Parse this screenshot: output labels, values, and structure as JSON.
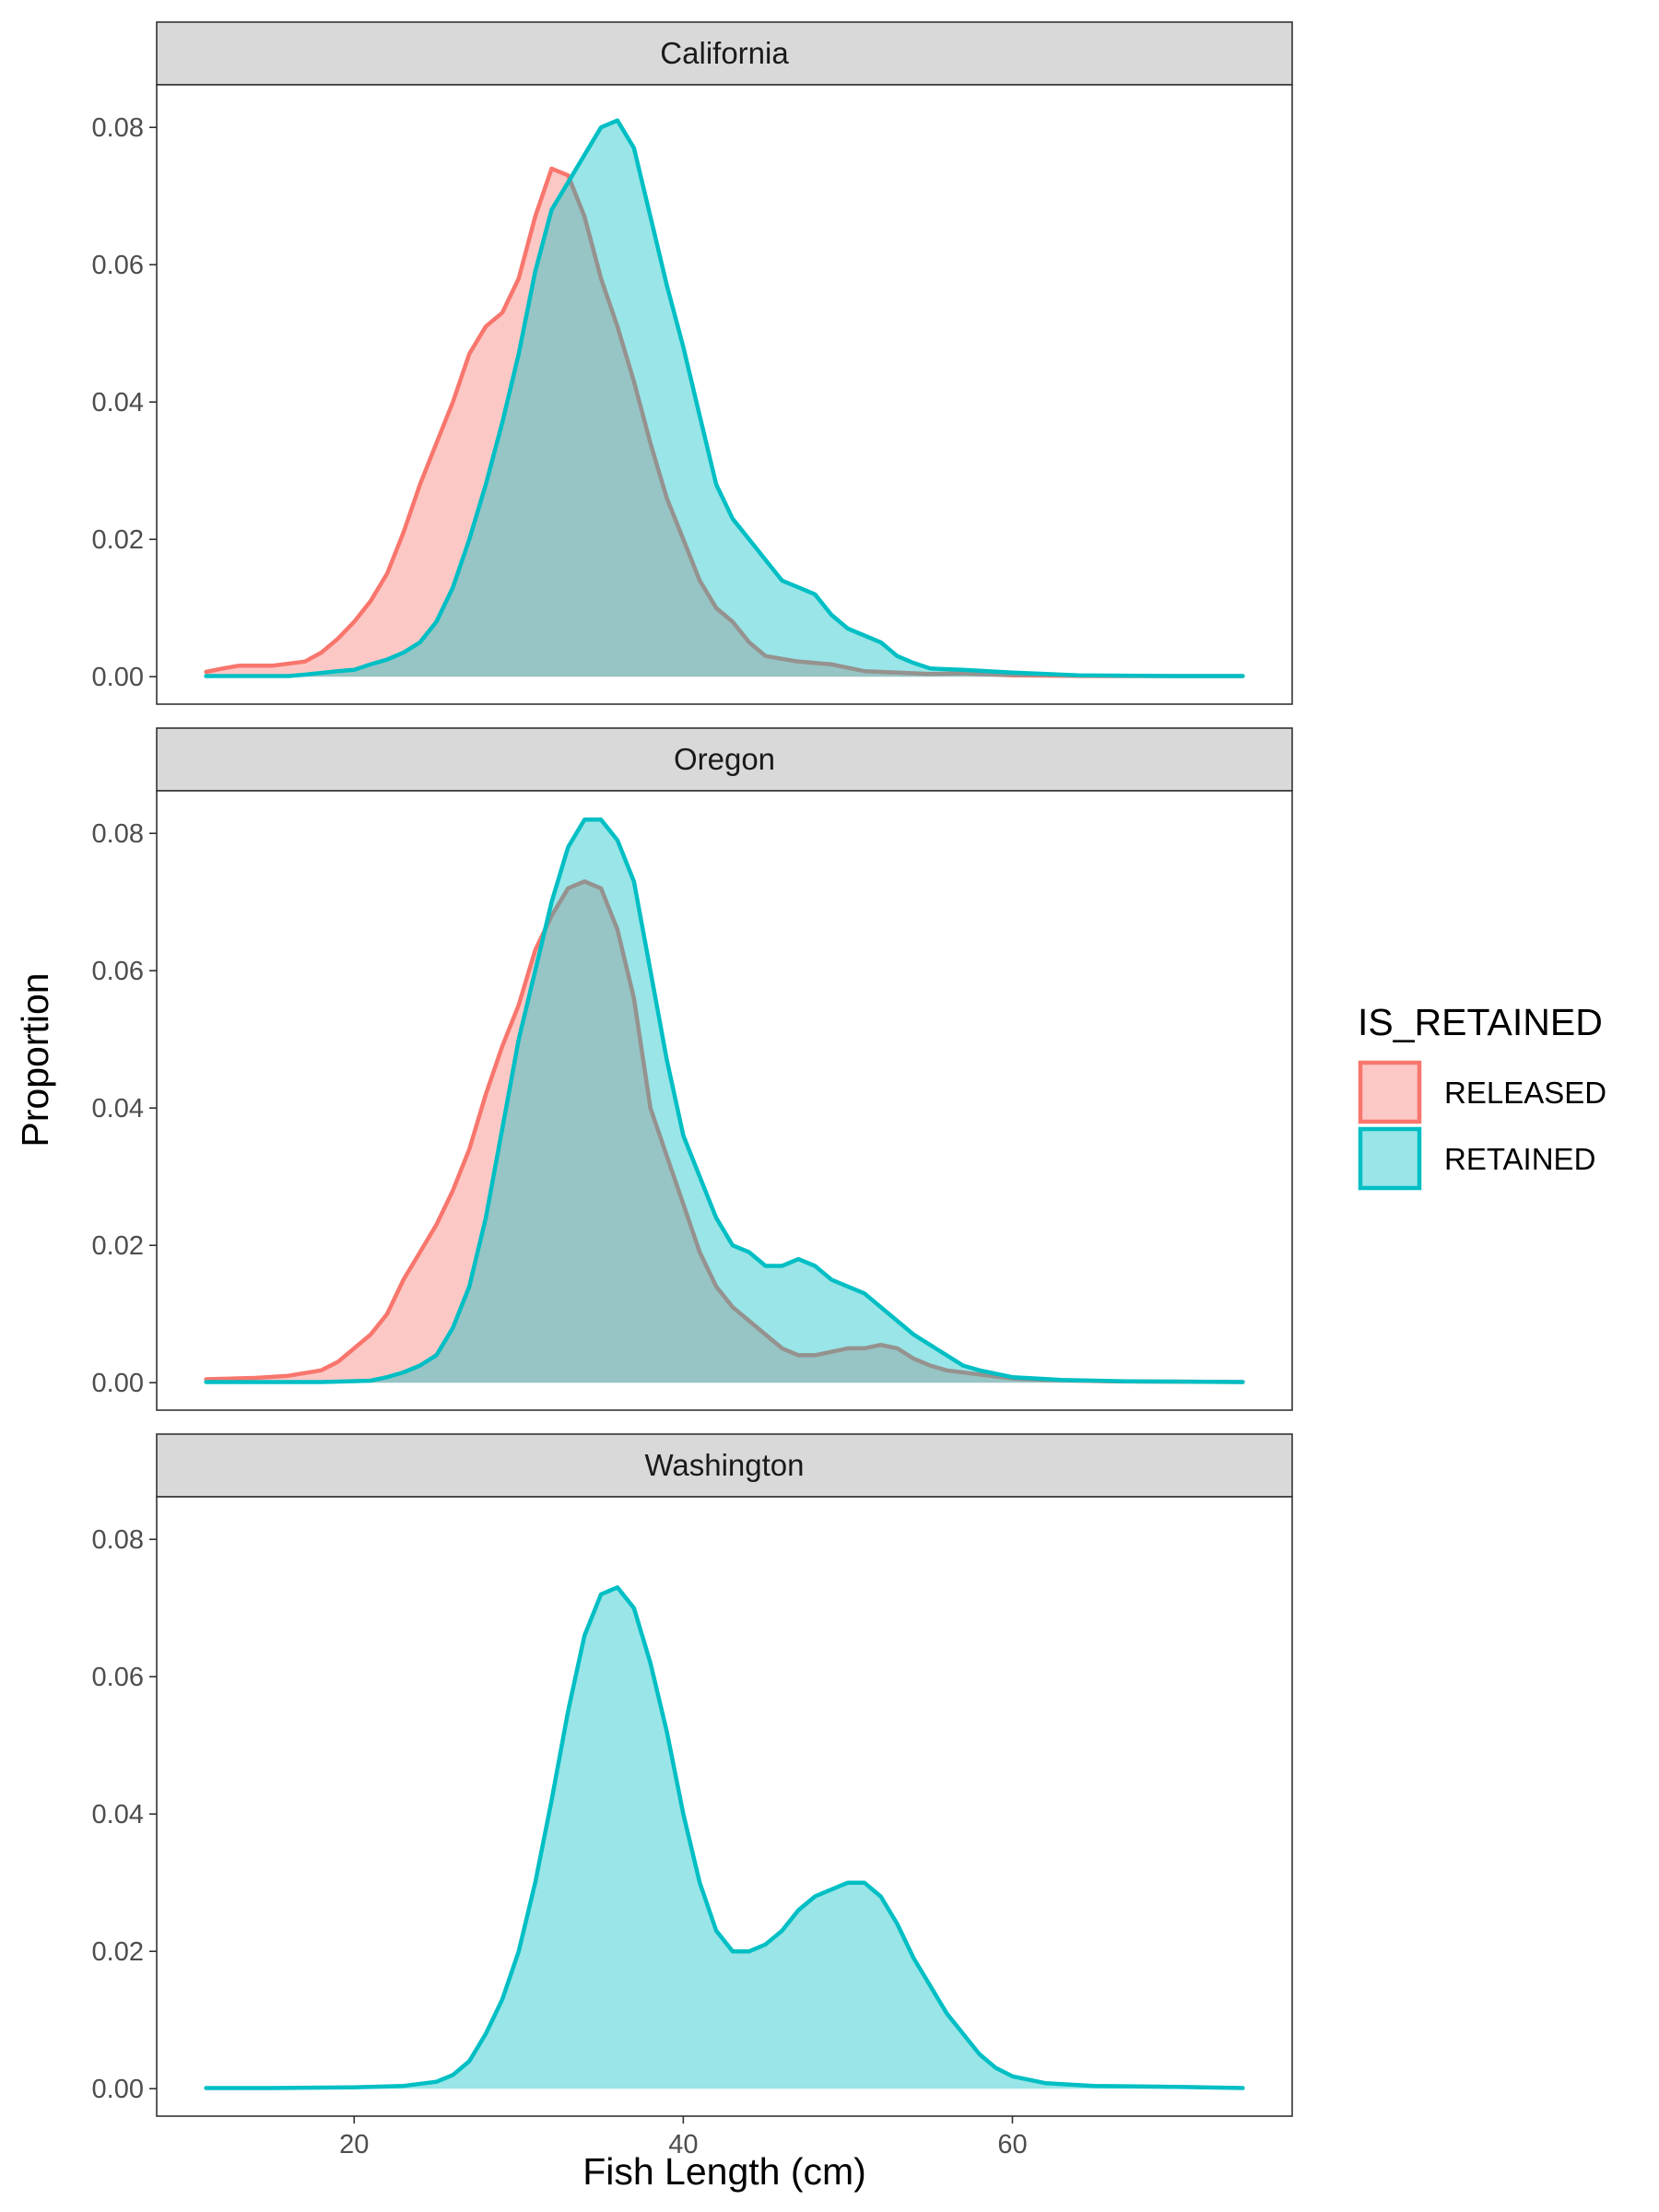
{
  "chart_data": {
    "type": "area",
    "subtype": "density-facets",
    "xlabel": "Fish Length (cm)",
    "ylabel": "Proportion",
    "xlim": [
      8,
      77
    ],
    "ylim": [
      -0.004,
      0.0862
    ],
    "x_ticks": [
      20,
      40,
      60
    ],
    "y_ticks": [
      0.0,
      0.02,
      0.04,
      0.06,
      0.08
    ],
    "y_tick_labels": [
      "0.00",
      "0.02",
      "0.04",
      "0.06",
      "0.08"
    ],
    "grid": false,
    "legend": {
      "title": "IS_RETAINED",
      "position": "right",
      "entries": [
        {
          "name": "RELEASED",
          "color": "#F8766D"
        },
        {
          "name": "RETAINED",
          "color": "#00BFC4"
        }
      ]
    },
    "series_colors": {
      "RELEASED": "#F8766D",
      "RETAINED": "#00BFC4"
    },
    "facets": [
      {
        "label": "California",
        "series": [
          {
            "name": "RELEASED",
            "points": [
              [
                11,
                0.0007
              ],
              [
                12,
                0.0012
              ],
              [
                13,
                0.0016
              ],
              [
                15,
                0.0016
              ],
              [
                17,
                0.0022
              ],
              [
                18,
                0.0035
              ],
              [
                19,
                0.0055
              ],
              [
                20,
                0.008
              ],
              [
                21,
                0.011
              ],
              [
                22,
                0.015
              ],
              [
                23,
                0.021
              ],
              [
                24,
                0.028
              ],
              [
                25,
                0.034
              ],
              [
                26,
                0.04
              ],
              [
                27,
                0.047
              ],
              [
                28,
                0.051
              ],
              [
                29,
                0.053
              ],
              [
                30,
                0.058
              ],
              [
                31,
                0.067
              ],
              [
                32,
                0.074
              ],
              [
                33,
                0.073
              ],
              [
                34,
                0.067
              ],
              [
                35,
                0.058
              ],
              [
                36,
                0.051
              ],
              [
                37,
                0.043
              ],
              [
                38,
                0.034
              ],
              [
                39,
                0.026
              ],
              [
                40,
                0.02
              ],
              [
                41,
                0.014
              ],
              [
                42,
                0.01
              ],
              [
                43,
                0.008
              ],
              [
                44,
                0.005
              ],
              [
                45,
                0.003
              ],
              [
                47,
                0.0022
              ],
              [
                49,
                0.0018
              ],
              [
                51,
                0.0008
              ],
              [
                53,
                0.0006
              ],
              [
                55,
                0.0004
              ],
              [
                57,
                0.0005
              ],
              [
                60,
                0.0002
              ],
              [
                65,
                0.0001
              ],
              [
                74,
                0.0001
              ]
            ]
          },
          {
            "name": "RETAINED",
            "points": [
              [
                11,
                0.0001
              ],
              [
                14,
                0.0001
              ],
              [
                16,
                0.0001
              ],
              [
                17,
                0.0003
              ],
              [
                19,
                0.0008
              ],
              [
                20,
                0.001
              ],
              [
                21,
                0.0018
              ],
              [
                22,
                0.0025
              ],
              [
                23,
                0.0035
              ],
              [
                24,
                0.005
              ],
              [
                25,
                0.008
              ],
              [
                26,
                0.013
              ],
              [
                27,
                0.02
              ],
              [
                28,
                0.028
              ],
              [
                29,
                0.037
              ],
              [
                30,
                0.047
              ],
              [
                31,
                0.059
              ],
              [
                32,
                0.068
              ],
              [
                33,
                0.072
              ],
              [
                34,
                0.076
              ],
              [
                35,
                0.08
              ],
              [
                36,
                0.081
              ],
              [
                37,
                0.077
              ],
              [
                38,
                0.067
              ],
              [
                39,
                0.057
              ],
              [
                40,
                0.048
              ],
              [
                41,
                0.038
              ],
              [
                42,
                0.028
              ],
              [
                43,
                0.023
              ],
              [
                44,
                0.02
              ],
              [
                45,
                0.017
              ],
              [
                46,
                0.014
              ],
              [
                47,
                0.013
              ],
              [
                48,
                0.012
              ],
              [
                49,
                0.009
              ],
              [
                50,
                0.007
              ],
              [
                51,
                0.006
              ],
              [
                52,
                0.005
              ],
              [
                53,
                0.003
              ],
              [
                54,
                0.002
              ],
              [
                55,
                0.0012
              ],
              [
                57,
                0.001
              ],
              [
                60,
                0.0006
              ],
              [
                64,
                0.0002
              ],
              [
                70,
                0.0001
              ],
              [
                74,
                0.0001
              ]
            ]
          }
        ]
      },
      {
        "label": "Oregon",
        "series": [
          {
            "name": "RELEASED",
            "points": [
              [
                11,
                0.0005
              ],
              [
                14,
                0.0007
              ],
              [
                16,
                0.001
              ],
              [
                18,
                0.0018
              ],
              [
                19,
                0.003
              ],
              [
                20,
                0.005
              ],
              [
                21,
                0.007
              ],
              [
                22,
                0.01
              ],
              [
                23,
                0.015
              ],
              [
                24,
                0.019
              ],
              [
                25,
                0.023
              ],
              [
                26,
                0.028
              ],
              [
                27,
                0.034
              ],
              [
                28,
                0.042
              ],
              [
                29,
                0.049
              ],
              [
                30,
                0.055
              ],
              [
                31,
                0.063
              ],
              [
                32,
                0.068
              ],
              [
                33,
                0.072
              ],
              [
                34,
                0.073
              ],
              [
                35,
                0.072
              ],
              [
                36,
                0.066
              ],
              [
                37,
                0.056
              ],
              [
                38,
                0.04
              ],
              [
                39,
                0.033
              ],
              [
                40,
                0.026
              ],
              [
                41,
                0.019
              ],
              [
                42,
                0.014
              ],
              [
                43,
                0.011
              ],
              [
                44,
                0.009
              ],
              [
                45,
                0.007
              ],
              [
                46,
                0.005
              ],
              [
                47,
                0.004
              ],
              [
                48,
                0.004
              ],
              [
                49,
                0.0045
              ],
              [
                50,
                0.005
              ],
              [
                51,
                0.005
              ],
              [
                52,
                0.0055
              ],
              [
                53,
                0.005
              ],
              [
                54,
                0.0035
              ],
              [
                55,
                0.0025
              ],
              [
                56,
                0.0018
              ],
              [
                58,
                0.0012
              ],
              [
                60,
                0.0006
              ],
              [
                62,
                0.0004
              ],
              [
                66,
                0.0002
              ],
              [
                74,
                0.0001
              ]
            ]
          },
          {
            "name": "RETAINED",
            "points": [
              [
                11,
                0.0001
              ],
              [
                15,
                0.0001
              ],
              [
                18,
                0.0001
              ],
              [
                21,
                0.0003
              ],
              [
                22,
                0.0008
              ],
              [
                23,
                0.0015
              ],
              [
                24,
                0.0025
              ],
              [
                25,
                0.004
              ],
              [
                26,
                0.008
              ],
              [
                27,
                0.014
              ],
              [
                28,
                0.024
              ],
              [
                29,
                0.037
              ],
              [
                30,
                0.05
              ],
              [
                31,
                0.06
              ],
              [
                32,
                0.07
              ],
              [
                33,
                0.078
              ],
              [
                34,
                0.082
              ],
              [
                35,
                0.082
              ],
              [
                36,
                0.079
              ],
              [
                37,
                0.073
              ],
              [
                38,
                0.06
              ],
              [
                39,
                0.047
              ],
              [
                40,
                0.036
              ],
              [
                41,
                0.03
              ],
              [
                42,
                0.024
              ],
              [
                43,
                0.02
              ],
              [
                44,
                0.019
              ],
              [
                45,
                0.017
              ],
              [
                46,
                0.017
              ],
              [
                47,
                0.018
              ],
              [
                48,
                0.017
              ],
              [
                49,
                0.015
              ],
              [
                50,
                0.014
              ],
              [
                51,
                0.013
              ],
              [
                52,
                0.011
              ],
              [
                53,
                0.009
              ],
              [
                54,
                0.007
              ],
              [
                55,
                0.0055
              ],
              [
                56,
                0.004
              ],
              [
                57,
                0.0025
              ],
              [
                58,
                0.0018
              ],
              [
                60,
                0.0008
              ],
              [
                63,
                0.0004
              ],
              [
                67,
                0.0002
              ],
              [
                74,
                0.0001
              ]
            ]
          }
        ]
      },
      {
        "label": "Washington",
        "series": [
          {
            "name": "RETAINED",
            "points": [
              [
                11,
                0.0001
              ],
              [
                15,
                0.0001
              ],
              [
                20,
                0.0002
              ],
              [
                23,
                0.0004
              ],
              [
                25,
                0.001
              ],
              [
                26,
                0.002
              ],
              [
                27,
                0.004
              ],
              [
                28,
                0.008
              ],
              [
                29,
                0.013
              ],
              [
                30,
                0.02
              ],
              [
                31,
                0.03
              ],
              [
                32,
                0.042
              ],
              [
                33,
                0.055
              ],
              [
                34,
                0.066
              ],
              [
                35,
                0.072
              ],
              [
                36,
                0.073
              ],
              [
                37,
                0.07
              ],
              [
                38,
                0.062
              ],
              [
                39,
                0.052
              ],
              [
                40,
                0.04
              ],
              [
                41,
                0.03
              ],
              [
                42,
                0.023
              ],
              [
                43,
                0.02
              ],
              [
                44,
                0.02
              ],
              [
                45,
                0.021
              ],
              [
                46,
                0.023
              ],
              [
                47,
                0.026
              ],
              [
                48,
                0.028
              ],
              [
                49,
                0.029
              ],
              [
                50,
                0.03
              ],
              [
                51,
                0.03
              ],
              [
                52,
                0.028
              ],
              [
                53,
                0.024
              ],
              [
                54,
                0.019
              ],
              [
                55,
                0.015
              ],
              [
                56,
                0.011
              ],
              [
                57,
                0.008
              ],
              [
                58,
                0.005
              ],
              [
                59,
                0.003
              ],
              [
                60,
                0.0018
              ],
              [
                62,
                0.0008
              ],
              [
                65,
                0.0004
              ],
              [
                69,
                0.0003
              ],
              [
                74,
                0.0001
              ]
            ]
          }
        ]
      }
    ]
  }
}
